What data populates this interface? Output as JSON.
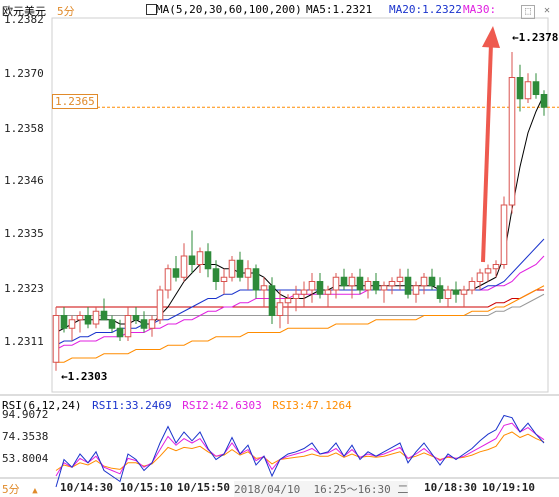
{
  "header": {
    "symbol": "欧元美元",
    "period": "5分",
    "ma_label": "MA(5,20,30,60,100,200)",
    "ma5": "MA5:1.2321",
    "ma20": "MA20:1.2322",
    "ma30": "MA30:"
  },
  "price_axis": [
    "1.2382",
    "1.2370",
    "1.2358",
    "1.2346",
    "1.2335",
    "1.2323",
    "1.2311"
  ],
  "current_price_tag": "1.2365",
  "high_annotation": "1.2378",
  "low_annotation": "1.2303",
  "rsi": {
    "label": "RSI(6,12,24)",
    "rsi1": "RSI1:33.2469",
    "rsi2": "RSI2:42.6303",
    "rsi3": "RSI3:47.1264",
    "axis": [
      "94.9072",
      "74.3538",
      "53.8004"
    ]
  },
  "footer": {
    "period": "5分",
    "times": [
      "10/14:30",
      "10/15:10",
      "10/15:50",
      "10/18:30",
      "10/19:10"
    ],
    "date_range": "2018/04/10  16:25～16:30 二"
  },
  "colors": {
    "up": "#d9534f",
    "down": "#2e8b3a",
    "ma5": "#000000",
    "ma20": "#1a33cc",
    "ma30": "#e020e0",
    "ma60": "#ff8c00",
    "ma100": "#cc0000",
    "ma200": "#999999",
    "arrow": "#ee5a4f"
  },
  "icons": [
    "expand-icon",
    "close-icon"
  ],
  "chart_data": {
    "type": "candlestick",
    "interval": "5分",
    "candles": [
      [
        1.2305,
        1.2318,
        1.2303,
        1.2316
      ],
      [
        1.2316,
        1.2318,
        1.2312,
        1.2313
      ],
      [
        1.2313,
        1.2316,
        1.231,
        1.2315
      ],
      [
        1.2315,
        1.2317,
        1.2312,
        1.2316
      ],
      [
        1.2316,
        1.2318,
        1.2313,
        1.2314
      ],
      [
        1.2314,
        1.2318,
        1.2313,
        1.2317
      ],
      [
        1.2317,
        1.232,
        1.2315,
        1.2315
      ],
      [
        1.2315,
        1.2316,
        1.2312,
        1.2313
      ],
      [
        1.2313,
        1.2315,
        1.231,
        1.2311
      ],
      [
        1.2311,
        1.2318,
        1.231,
        1.2316
      ],
      [
        1.2316,
        1.2318,
        1.2314,
        1.2315
      ],
      [
        1.2315,
        1.2317,
        1.2312,
        1.2313
      ],
      [
        1.2313,
        1.2316,
        1.2311,
        1.2315
      ],
      [
        1.2315,
        1.2323,
        1.2314,
        1.2322
      ],
      [
        1.2322,
        1.2328,
        1.232,
        1.2327
      ],
      [
        1.2327,
        1.233,
        1.2324,
        1.2325
      ],
      [
        1.2325,
        1.2333,
        1.2324,
        1.233
      ],
      [
        1.233,
        1.2336,
        1.2326,
        1.2328
      ],
      [
        1.2328,
        1.2332,
        1.2326,
        1.2331
      ],
      [
        1.2331,
        1.2333,
        1.2325,
        1.2327
      ],
      [
        1.2327,
        1.2329,
        1.2322,
        1.2324
      ],
      [
        1.2324,
        1.2327,
        1.2321,
        1.2325
      ],
      [
        1.2325,
        1.233,
        1.2324,
        1.2329
      ],
      [
        1.2329,
        1.2331,
        1.2324,
        1.2325
      ],
      [
        1.2325,
        1.2329,
        1.2322,
        1.2327
      ],
      [
        1.2327,
        1.2328,
        1.232,
        1.2322
      ],
      [
        1.2322,
        1.2325,
        1.2318,
        1.2323
      ],
      [
        1.2323,
        1.2325,
        1.2314,
        1.2316
      ],
      [
        1.2316,
        1.2322,
        1.2313,
        1.2319
      ],
      [
        1.2319,
        1.2321,
        1.2314,
        1.232
      ],
      [
        1.232,
        1.2323,
        1.2317,
        1.2321
      ],
      [
        1.2321,
        1.2324,
        1.2318,
        1.2322
      ],
      [
        1.2322,
        1.2326,
        1.2319,
        1.2324
      ],
      [
        1.2324,
        1.2326,
        1.232,
        1.2321
      ],
      [
        1.2321,
        1.2323,
        1.2318,
        1.2322
      ],
      [
        1.2322,
        1.2326,
        1.232,
        1.2325
      ],
      [
        1.2325,
        1.2327,
        1.2322,
        1.2323
      ],
      [
        1.2323,
        1.2326,
        1.232,
        1.2325
      ],
      [
        1.2325,
        1.2327,
        1.2321,
        1.2322
      ],
      [
        1.2322,
        1.2325,
        1.232,
        1.2324
      ],
      [
        1.2324,
        1.2326,
        1.2321,
        1.2322
      ],
      [
        1.2322,
        1.2324,
        1.2319,
        1.2323
      ],
      [
        1.2323,
        1.2325,
        1.2321,
        1.2324
      ],
      [
        1.2324,
        1.2327,
        1.2322,
        1.2325
      ],
      [
        1.2325,
        1.2327,
        1.232,
        1.2321
      ],
      [
        1.2321,
        1.2324,
        1.2319,
        1.2323
      ],
      [
        1.2323,
        1.2326,
        1.2321,
        1.2325
      ],
      [
        1.2325,
        1.2327,
        1.2322,
        1.2323
      ],
      [
        1.2323,
        1.2325,
        1.2319,
        1.232
      ],
      [
        1.232,
        1.2323,
        1.2318,
        1.2322
      ],
      [
        1.2322,
        1.2324,
        1.2319,
        1.2321
      ],
      [
        1.2321,
        1.2323,
        1.2318,
        1.2322
      ],
      [
        1.2322,
        1.2325,
        1.2321,
        1.2324
      ],
      [
        1.2324,
        1.2327,
        1.2322,
        1.2326
      ],
      [
        1.2326,
        1.2328,
        1.2324,
        1.2327
      ],
      [
        1.2327,
        1.2329,
        1.2325,
        1.2328
      ],
      [
        1.2328,
        1.2344,
        1.2327,
        1.2342
      ],
      [
        1.2342,
        1.2378,
        1.234,
        1.2372
      ],
      [
        1.2372,
        1.2375,
        1.2364,
        1.2367
      ],
      [
        1.2367,
        1.2373,
        1.2366,
        1.2371
      ],
      [
        1.2371,
        1.2373,
        1.2367,
        1.2368
      ],
      [
        1.2368,
        1.2369,
        1.2363,
        1.2365
      ]
    ],
    "ma5": [
      1.2312,
      1.2313,
      1.2314,
      1.2315,
      1.2315,
      1.2315,
      1.2315,
      1.2315,
      1.2314,
      1.2314,
      1.2315,
      1.2314,
      1.2314,
      1.2316,
      1.2318,
      1.2321,
      1.2324,
      1.2326,
      1.2328,
      1.2328,
      1.2328,
      1.2327,
      1.2327,
      1.2326,
      1.2326,
      1.2326,
      1.2325,
      1.2323,
      1.2321,
      1.232,
      1.232,
      1.232,
      1.2321,
      1.2322,
      1.2322,
      1.2323,
      1.2323,
      1.2323,
      1.2323,
      1.2323,
      1.2323,
      1.2323,
      1.2323,
      1.2323,
      1.2323,
      1.2323,
      1.2323,
      1.2323,
      1.2322,
      1.2322,
      1.2322,
      1.2322,
      1.2322,
      1.2323,
      1.2324,
      1.2325,
      1.233,
      1.2341,
      1.2351,
      1.2359,
      1.2364,
      1.2368
    ],
    "ma20": [
      1.2309,
      1.231,
      1.231,
      1.2311,
      1.2311,
      1.2312,
      1.2312,
      1.2312,
      1.2313,
      1.2313,
      1.2313,
      1.2314,
      1.2314,
      1.2315,
      1.2315,
      1.2316,
      1.2317,
      1.2318,
      1.2319,
      1.232,
      1.232,
      1.2321,
      1.2321,
      1.2322,
      1.2322,
      1.2322,
      1.2322,
      1.2322,
      1.2322,
      1.2322,
      1.2322,
      1.2322,
      1.2322,
      1.2322,
      1.2322,
      1.2322,
      1.2322,
      1.2322,
      1.2322,
      1.2322,
      1.2322,
      1.2322,
      1.2322,
      1.2322,
      1.2322,
      1.2322,
      1.2322,
      1.2322,
      1.2322,
      1.2322,
      1.2322,
      1.2322,
      1.2322,
      1.2322,
      1.2323,
      1.2323,
      1.2324,
      1.2326,
      1.2328,
      1.233,
      1.2332,
      1.2334
    ],
    "ma30": [
      1.2308,
      1.2309,
      1.2309,
      1.231,
      1.231,
      1.231,
      1.2311,
      1.2311,
      1.2311,
      1.2312,
      1.2312,
      1.2312,
      1.2313,
      1.2313,
      1.2314,
      1.2314,
      1.2315,
      1.2315,
      1.2316,
      1.2317,
      1.2317,
      1.2318,
      1.2318,
      1.2319,
      1.2319,
      1.232,
      1.232,
      1.232,
      1.232,
      1.232,
      1.2321,
      1.2321,
      1.2321,
      1.2321,
      1.2321,
      1.2321,
      1.2321,
      1.2321,
      1.2321,
      1.2322,
      1.2322,
      1.2322,
      1.2322,
      1.2322,
      1.2322,
      1.2322,
      1.2322,
      1.2322,
      1.2322,
      1.2322,
      1.2322,
      1.2322,
      1.2322,
      1.2322,
      1.2322,
      1.2323,
      1.2323,
      1.2324,
      1.2326,
      1.2327,
      1.2328,
      1.233
    ],
    "ma60": [
      1.2305,
      1.2305,
      1.2306,
      1.2306,
      1.2306,
      1.2306,
      1.2307,
      1.2307,
      1.2307,
      1.2307,
      1.2308,
      1.2308,
      1.2308,
      1.2308,
      1.2309,
      1.2309,
      1.2309,
      1.231,
      1.231,
      1.231,
      1.2311,
      1.2311,
      1.2311,
      1.2311,
      1.2312,
      1.2312,
      1.2312,
      1.2312,
      1.2312,
      1.2313,
      1.2313,
      1.2313,
      1.2313,
      1.2313,
      1.2313,
      1.2314,
      1.2314,
      1.2314,
      1.2314,
      1.2314,
      1.2315,
      1.2315,
      1.2315,
      1.2315,
      1.2315,
      1.2315,
      1.2316,
      1.2316,
      1.2316,
      1.2316,
      1.2316,
      1.2316,
      1.2317,
      1.2317,
      1.2317,
      1.2318,
      1.2318,
      1.2319,
      1.232,
      1.2321,
      1.2322,
      1.2323
    ],
    "ma100": [
      1.2318,
      1.2318,
      1.2318,
      1.2318,
      1.2318,
      1.2318,
      1.2318,
      1.2318,
      1.2318,
      1.2318,
      1.2318,
      1.2318,
      1.2318,
      1.2318,
      1.2318,
      1.2318,
      1.2318,
      1.2318,
      1.2318,
      1.2318,
      1.2318,
      1.2318,
      1.2318,
      1.2318,
      1.2318,
      1.2318,
      1.2318,
      1.2318,
      1.2318,
      1.2318,
      1.2318,
      1.2318,
      1.2318,
      1.2318,
      1.2318,
      1.2318,
      1.2318,
      1.2318,
      1.2318,
      1.2318,
      1.2318,
      1.2318,
      1.2318,
      1.2318,
      1.2318,
      1.2318,
      1.2318,
      1.2318,
      1.2318,
      1.2318,
      1.2318,
      1.2318,
      1.2318,
      1.2318,
      1.2318,
      1.2319,
      1.2319,
      1.232,
      1.232,
      1.2321,
      1.2322,
      1.2322
    ],
    "ma200": [
      1.2316,
      1.2316,
      1.2316,
      1.2316,
      1.2316,
      1.2316,
      1.2316,
      1.2316,
      1.2316,
      1.2316,
      1.2316,
      1.2316,
      1.2316,
      1.2316,
      1.2316,
      1.2316,
      1.2316,
      1.2316,
      1.2316,
      1.2316,
      1.2316,
      1.2316,
      1.2316,
      1.2316,
      1.2316,
      1.2316,
      1.2316,
      1.2316,
      1.2316,
      1.2316,
      1.2316,
      1.2316,
      1.2316,
      1.2316,
      1.2316,
      1.2316,
      1.2316,
      1.2316,
      1.2316,
      1.2316,
      1.2316,
      1.2316,
      1.2316,
      1.2316,
      1.2316,
      1.2316,
      1.2316,
      1.2316,
      1.2316,
      1.2316,
      1.2316,
      1.2316,
      1.2316,
      1.2316,
      1.2316,
      1.2317,
      1.2317,
      1.2318,
      1.2318,
      1.2319,
      1.232,
      1.2321
    ],
    "rsi1": [
      30,
      55,
      48,
      60,
      52,
      62,
      45,
      40,
      35,
      60,
      55,
      45,
      52,
      70,
      85,
      70,
      80,
      72,
      80,
      65,
      55,
      60,
      75,
      60,
      68,
      50,
      58,
      40,
      55,
      60,
      62,
      65,
      70,
      60,
      62,
      70,
      58,
      68,
      55,
      62,
      58,
      62,
      66,
      70,
      52,
      62,
      70,
      60,
      50,
      60,
      55,
      60,
      65,
      72,
      78,
      82,
      95,
      93,
      80,
      88,
      78,
      70
    ],
    "rsi2": [
      40,
      52,
      48,
      56,
      52,
      58,
      48,
      45,
      42,
      56,
      54,
      48,
      52,
      64,
      76,
      68,
      74,
      70,
      74,
      64,
      58,
      60,
      70,
      60,
      64,
      54,
      58,
      46,
      55,
      58,
      60,
      62,
      65,
      60,
      61,
      65,
      58,
      64,
      57,
      60,
      58,
      60,
      63,
      66,
      56,
      60,
      65,
      59,
      54,
      58,
      56,
      58,
      62,
      66,
      70,
      74,
      86,
      88,
      80,
      84,
      78,
      73
    ],
    "rsi3": [
      45,
      50,
      48,
      52,
      50,
      54,
      49,
      47,
      46,
      52,
      52,
      49,
      51,
      58,
      66,
      63,
      66,
      65,
      67,
      62,
      58,
      59,
      64,
      59,
      62,
      56,
      57,
      51,
      55,
      56,
      57,
      58,
      60,
      58,
      58,
      61,
      57,
      60,
      57,
      58,
      57,
      58,
      60,
      62,
      56,
      58,
      61,
      58,
      55,
      57,
      56,
      57,
      59,
      62,
      64,
      67,
      77,
      80,
      75,
      78,
      74,
      71
    ],
    "ylim": [
      1.2298,
      1.2386
    ],
    "rsi_ylim": [
      40,
      100
    ]
  }
}
